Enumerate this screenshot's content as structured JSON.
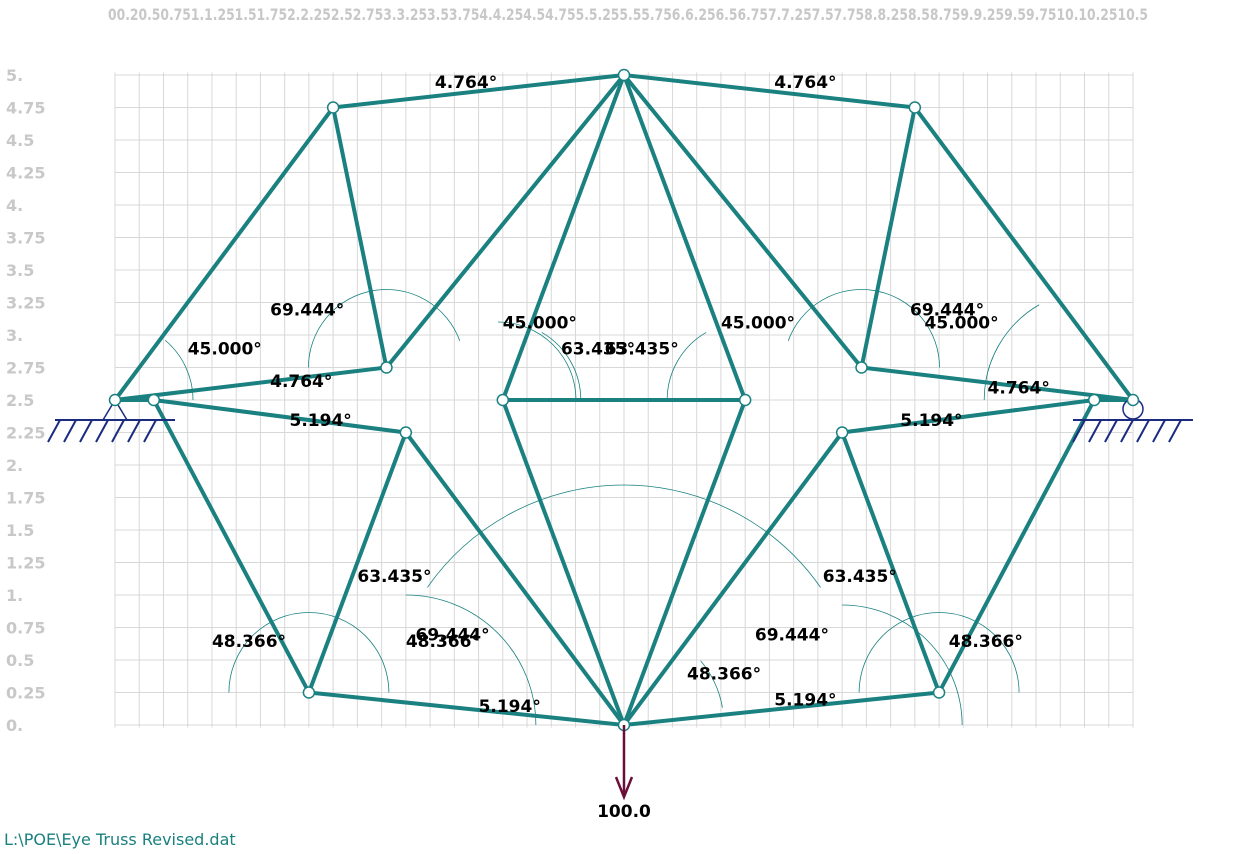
{
  "file_path": "L:\\POE\\Eye Truss Revised.dat",
  "colors": {
    "member": "#1a8080",
    "arc": "#1a8080",
    "grid": "#d8d8d8",
    "axis_text": "#c8c8c8",
    "support": "#1a2b80",
    "load": "#6b0f3a"
  },
  "x_axis_labels": [
    "00.25",
    "0.5",
    "0.75",
    "1",
    "1.25",
    "1.5",
    "1.75",
    "2",
    "2.25",
    "2.5",
    "2.75",
    "3",
    "3.25",
    "3.5",
    "3.75",
    "4",
    "4.25",
    "4.5",
    "4.75",
    "5",
    "5.25",
    "5.5",
    "5.75",
    "6",
    "6.25",
    "6.5",
    "6.75",
    "7",
    "7.25",
    "7.5",
    "7.75",
    "8",
    "8.25",
    "8.5",
    "8.75",
    "9",
    "9.25",
    "9.5",
    "9.75",
    "10",
    "10.25",
    "10.5"
  ],
  "x_axis_text": "00.20.50.751.1.251.51.752.2.252.52.753.3.253.53.754.4.254.54.755.5.255.55.756.6.256.56.757.7.257.57.758.8.258.58.759.9.259.59.7510.10.2510.5",
  "y_axis_labels": [
    "5.",
    "4.75",
    "4.5",
    "4.25",
    "4.",
    "3.75",
    "3.5",
    "3.25",
    "3.",
    "2.75",
    "2.5",
    "2.25",
    "2.",
    "1.75",
    "1.5",
    "1.25",
    "1.",
    "0.75",
    "0.5",
    "0.25",
    "0."
  ],
  "nodes": [
    {
      "id": "A",
      "x": 0.0,
      "y": 2.5
    },
    {
      "id": "B",
      "x": 0.4,
      "y": 2.5
    },
    {
      "id": "C",
      "x": 2.25,
      "y": 4.75
    },
    {
      "id": "D",
      "x": 2.8,
      "y": 2.75
    },
    {
      "id": "E",
      "x": 3.0,
      "y": 2.25
    },
    {
      "id": "F",
      "x": 2.0,
      "y": 0.25
    },
    {
      "id": "G",
      "x": 4.0,
      "y": 2.5
    },
    {
      "id": "H",
      "x": 5.25,
      "y": 5.0
    },
    {
      "id": "I",
      "x": 5.25,
      "y": 0.0
    },
    {
      "id": "J",
      "x": 6.5,
      "y": 2.5
    },
    {
      "id": "K",
      "x": 7.7,
      "y": 2.75
    },
    {
      "id": "L",
      "x": 7.5,
      "y": 2.25
    },
    {
      "id": "M",
      "x": 8.25,
      "y": 4.75
    },
    {
      "id": "N",
      "x": 8.5,
      "y": 0.25
    },
    {
      "id": "O",
      "x": 10.1,
      "y": 2.5
    },
    {
      "id": "P",
      "x": 10.5,
      "y": 2.5
    }
  ],
  "members": [
    [
      "A",
      "C"
    ],
    [
      "A",
      "D"
    ],
    [
      "A",
      "B"
    ],
    [
      "C",
      "D"
    ],
    [
      "C",
      "H"
    ],
    [
      "D",
      "H"
    ],
    [
      "B",
      "E"
    ],
    [
      "B",
      "F"
    ],
    [
      "E",
      "F"
    ],
    [
      "E",
      "I"
    ],
    [
      "F",
      "I"
    ],
    [
      "G",
      "H"
    ],
    [
      "G",
      "I"
    ],
    [
      "G",
      "J"
    ],
    [
      "H",
      "J"
    ],
    [
      "J",
      "I"
    ],
    [
      "H",
      "M"
    ],
    [
      "H",
      "K"
    ],
    [
      "M",
      "K"
    ],
    [
      "M",
      "P"
    ],
    [
      "K",
      "P"
    ],
    [
      "O",
      "L"
    ],
    [
      "O",
      "N"
    ],
    [
      "L",
      "N"
    ],
    [
      "L",
      "I"
    ],
    [
      "N",
      "I"
    ],
    [
      "O",
      "P"
    ]
  ],
  "angle_labels": [
    {
      "text": "4.764°",
      "x": 3.3,
      "y": 4.9
    },
    {
      "text": "4.764°",
      "x": 6.8,
      "y": 4.9
    },
    {
      "text": "69.444°",
      "x": 1.6,
      "y": 3.15
    },
    {
      "text": "45.000°",
      "x": 4.0,
      "y": 3.05
    },
    {
      "text": "63.435°",
      "x": 4.6,
      "y": 2.85
    },
    {
      "text": "63.435°",
      "x": 5.05,
      "y": 2.85
    },
    {
      "text": "45.000°",
      "x": 6.25,
      "y": 3.05
    },
    {
      "text": "69.444°",
      "x": 8.2,
      "y": 3.15
    },
    {
      "text": "45.000°",
      "x": 8.35,
      "y": 3.05
    },
    {
      "text": "45.000°",
      "x": 0.75,
      "y": 2.85
    },
    {
      "text": "4.764°",
      "x": 1.6,
      "y": 2.6
    },
    {
      "text": "4.764°",
      "x": 9.0,
      "y": 2.55
    },
    {
      "text": "5.194°",
      "x": 1.8,
      "y": 2.3
    },
    {
      "text": "5.194°",
      "x": 8.1,
      "y": 2.3
    },
    {
      "text": "63.435°",
      "x": 2.5,
      "y": 1.1
    },
    {
      "text": "63.435°",
      "x": 7.3,
      "y": 1.1
    },
    {
      "text": "48.366°",
      "x": 1.0,
      "y": 0.6
    },
    {
      "text": "69.444°",
      "x": 3.1,
      "y": 0.65
    },
    {
      "text": "48.366°",
      "x": 3.0,
      "y": 0.6
    },
    {
      "text": "69.444°",
      "x": 6.6,
      "y": 0.65
    },
    {
      "text": "48.366°",
      "x": 8.6,
      "y": 0.6
    },
    {
      "text": "48.366°",
      "x": 5.9,
      "y": 0.35
    },
    {
      "text": "5.194°",
      "x": 3.75,
      "y": 0.1
    },
    {
      "text": "5.194°",
      "x": 6.8,
      "y": 0.15
    }
  ],
  "load": {
    "label": "100.0",
    "node": "I"
  },
  "supports": [
    {
      "type": "pin",
      "node": "A"
    },
    {
      "type": "roller",
      "node": "P"
    }
  ]
}
